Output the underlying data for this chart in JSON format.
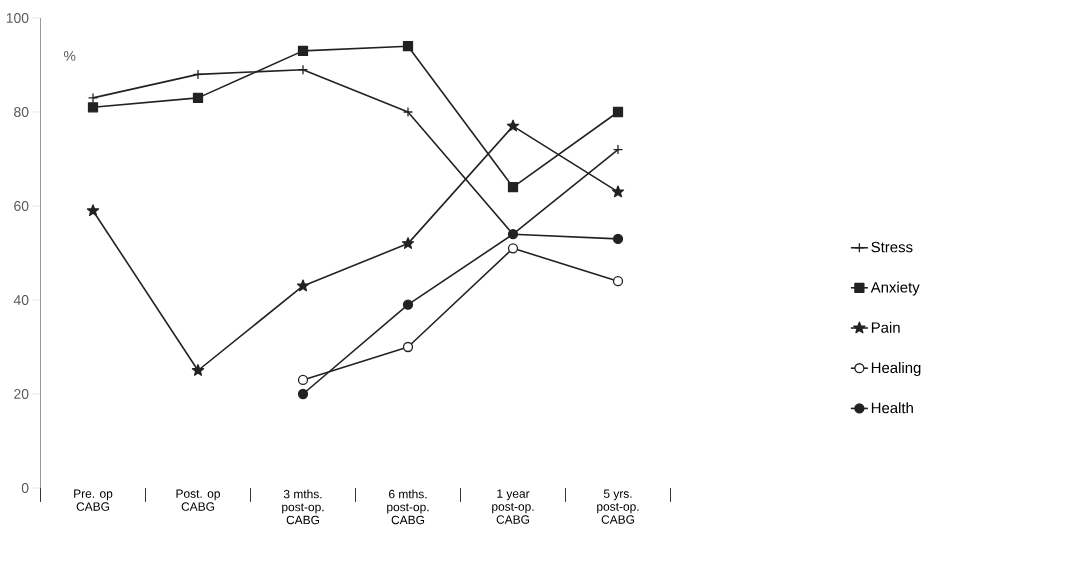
{
  "chart_data": {
    "type": "line",
    "ylabel": "%",
    "categories": [
      "Pre. op\nCABG",
      "Post. op\nCABG",
      "3 mths.\npost-op.\nCABG",
      "6 mths.\npost-op.\nCABG",
      "1 year\npost-op.\nCABG",
      "5 yrs.\npost-op.\nCABG"
    ],
    "series": [
      {
        "name": "Stress",
        "color": "#222222",
        "marker": "cross",
        "values": [
          83,
          88,
          89,
          80,
          54,
          72
        ]
      },
      {
        "name": "Anxiety",
        "color": "#222222",
        "marker": "square",
        "values": [
          81,
          83,
          93,
          94,
          64,
          80
        ]
      },
      {
        "name": "Pain",
        "color": "#222222",
        "marker": "star",
        "values": [
          59,
          25,
          43,
          52,
          77,
          63
        ]
      },
      {
        "name": "Healing",
        "color": "#222222",
        "marker": "circle",
        "colors": [
          "#ffffff",
          "#ffffff",
          "#ffffff",
          "#ffffff",
          "#ffffff",
          "#ffffff"
        ],
        "values": [
          null,
          null,
          23,
          30,
          51,
          44
        ]
      },
      {
        "name": "Health",
        "color": "#222222",
        "marker": "circle",
        "values": [
          null,
          null,
          20,
          39,
          54,
          53
        ]
      }
    ],
    "ylim": [
      0,
      100
    ],
    "yticks": [
      0,
      20,
      40,
      60,
      80,
      100
    ],
    "grid": false,
    "legend": "right",
    "line_style": "solid"
  }
}
